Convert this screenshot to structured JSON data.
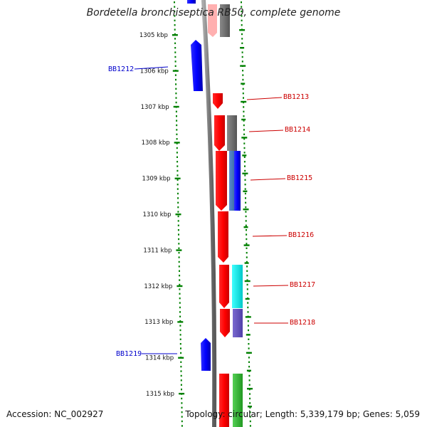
{
  "title": "Bordetella bronchiseptica RB50, complete genome",
  "accession_label": "Accession: NC_002927",
  "topology_label": "Topology: circular;",
  "length_label": "Length: 5,339,179 bp;",
  "genes_label": "Genes: 5,059",
  "ruler": {
    "unit": "kbp",
    "ticks": [
      "1305 kbp",
      "1306 kbp",
      "1307 kbp",
      "1308 kbp",
      "1309 kbp",
      "1310 kbp",
      "1311 kbp",
      "1312 kbp",
      "1313 kbp",
      "1314 kbp",
      "1315 kbp"
    ]
  },
  "gene_labels": [
    {
      "id": "BB1212",
      "strand": "minus",
      "color": "#0000cc"
    },
    {
      "id": "BB1213",
      "strand": "plus",
      "color": "#cc0000"
    },
    {
      "id": "BB1214",
      "strand": "plus",
      "color": "#cc0000"
    },
    {
      "id": "BB1215",
      "strand": "plus",
      "color": "#cc0000"
    },
    {
      "id": "BB1216",
      "strand": "plus",
      "color": "#cc0000"
    },
    {
      "id": "BB1217",
      "strand": "plus",
      "color": "#cc0000"
    },
    {
      "id": "BB1218",
      "strand": "plus",
      "color": "#cc0000"
    },
    {
      "id": "BB1219",
      "strand": "minus",
      "color": "#0000cc"
    }
  ],
  "colors": {
    "backbone": "#808080",
    "forward_cds": "#ff0000",
    "reverse_cds": "#0000ff",
    "ruler_ticks": "#008000",
    "cog_gray": "#707070",
    "cog_blue": "#0000ff",
    "cog_cyan": "#00e5e5",
    "cog_purple": "#6655bb",
    "cog_green": "#33bb33",
    "cog_pink": "#ffb0b0"
  }
}
